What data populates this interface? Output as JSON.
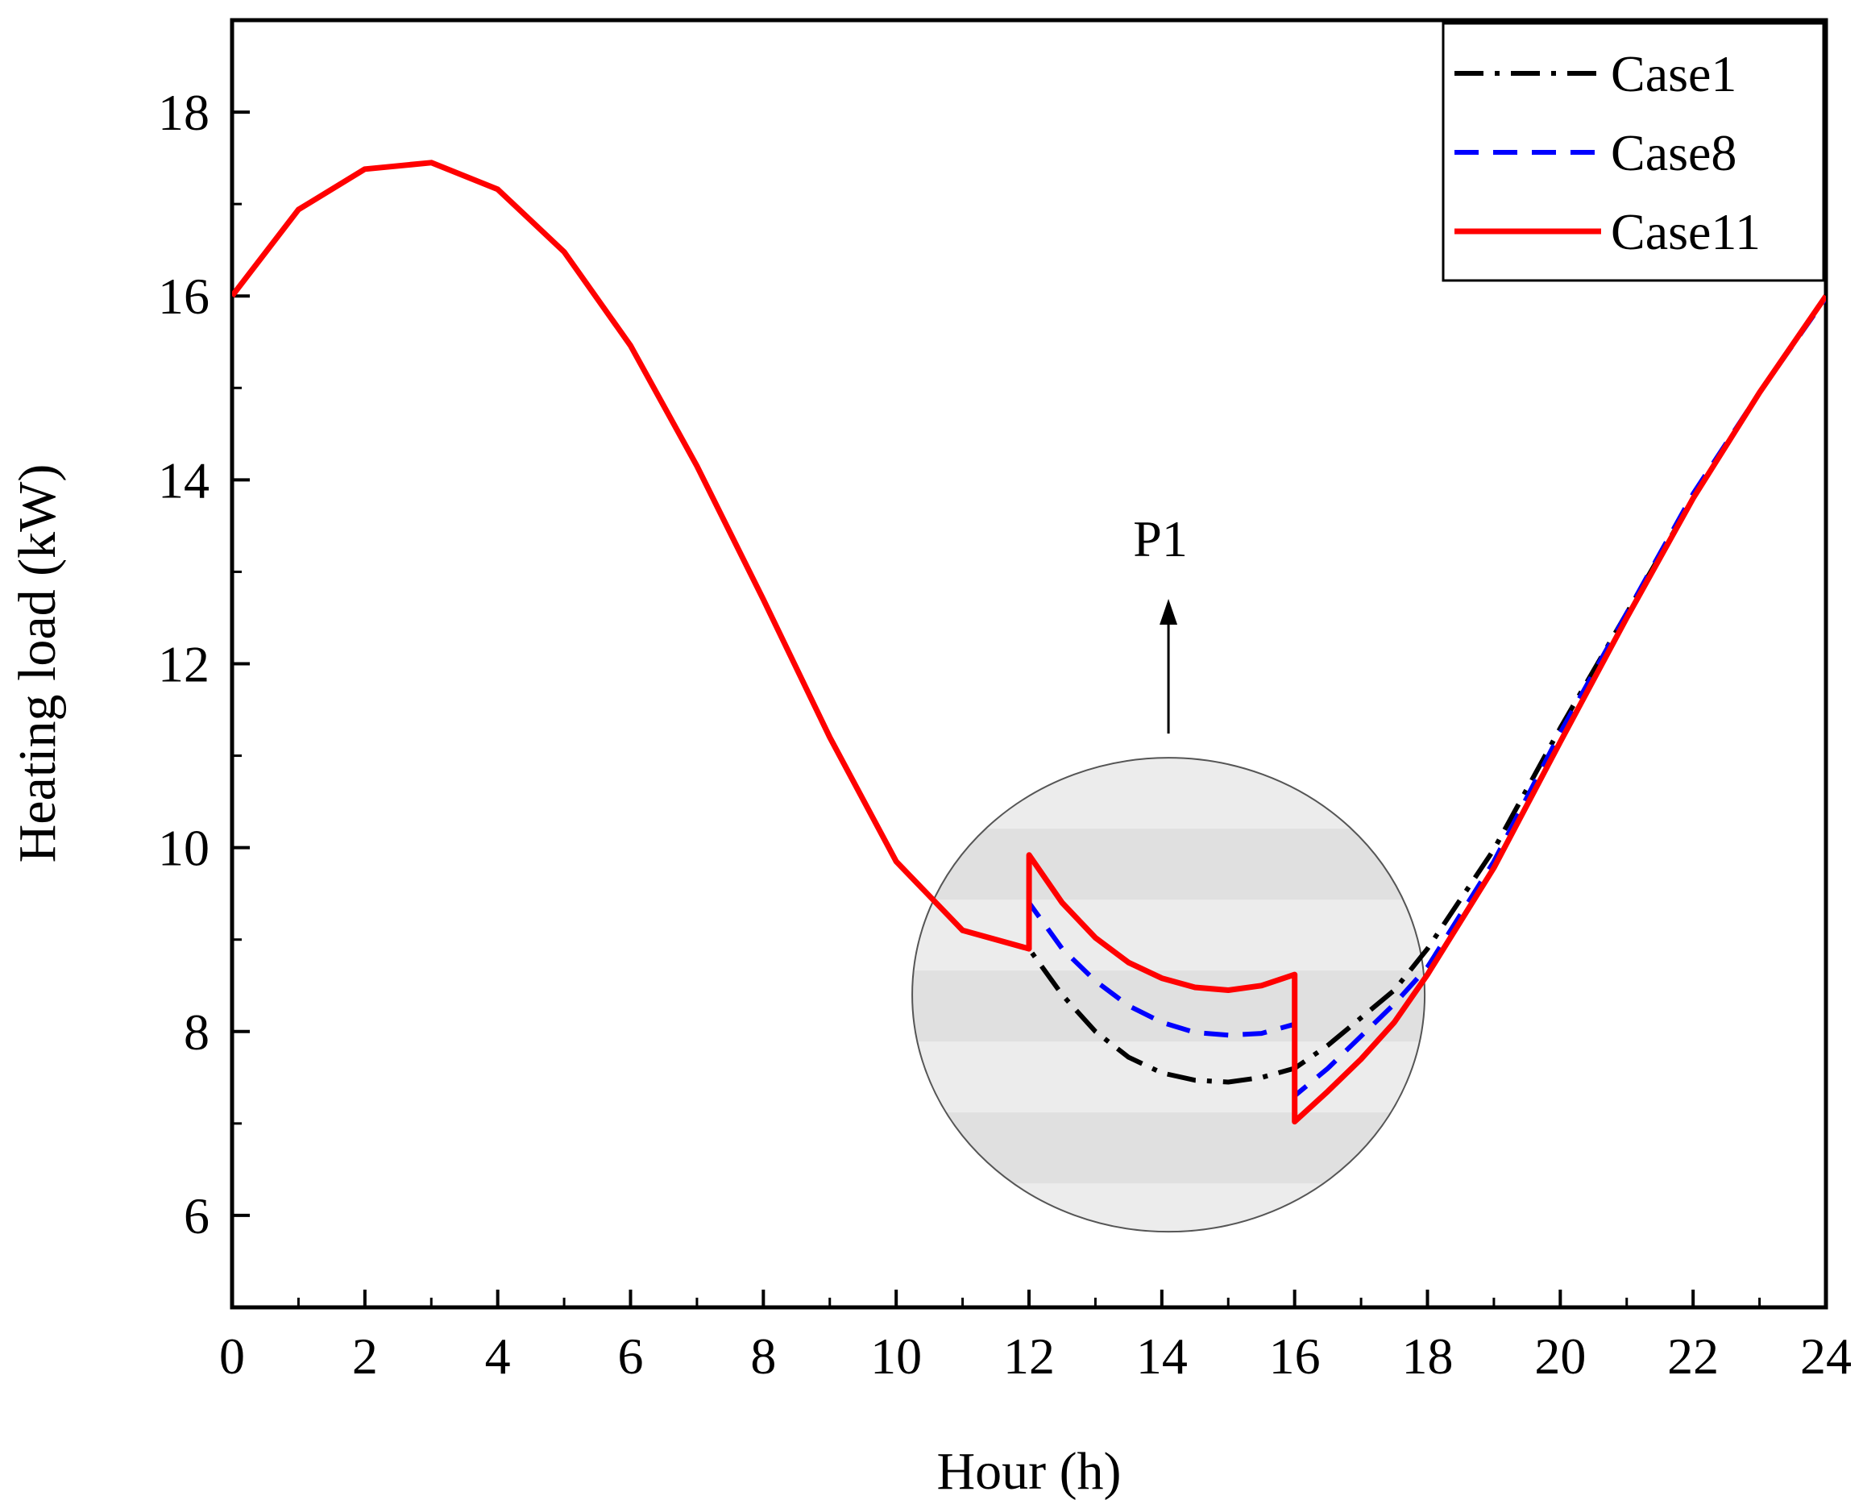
{
  "chart_data": {
    "type": "line",
    "title": "",
    "xlabel": "Hour (h)",
    "ylabel": "Heating load (kW)",
    "xlim": [
      0,
      24
    ],
    "ylim": [
      5,
      19
    ],
    "xticks": [
      0,
      2,
      4,
      6,
      8,
      10,
      12,
      14,
      16,
      18,
      20,
      22,
      24
    ],
    "yticks": [
      6,
      8,
      10,
      12,
      14,
      16,
      18
    ],
    "grid": false,
    "legend_position": "top-right",
    "series": [
      {
        "name": "Case1",
        "color": "#000000",
        "style": "dash-dot",
        "x": [
          0,
          1,
          2,
          3,
          4,
          5,
          6,
          7,
          8,
          9,
          10,
          11,
          12,
          12.5,
          13,
          13.5,
          14,
          14.5,
          15,
          15.5,
          16,
          16.5,
          17,
          17.5,
          18,
          19,
          20,
          21,
          22,
          23,
          24
        ],
        "y": [
          16.0,
          16.94,
          17.38,
          17.45,
          17.16,
          16.48,
          15.46,
          14.15,
          12.7,
          11.2,
          9.85,
          9.1,
          8.9,
          8.4,
          8.0,
          7.72,
          7.55,
          7.47,
          7.45,
          7.5,
          7.6,
          7.85,
          8.15,
          8.45,
          8.9,
          9.98,
          11.3,
          12.55,
          13.8,
          14.95,
          16.0
        ]
      },
      {
        "name": "Case8",
        "color": "#0000ff",
        "style": "dashed",
        "x": [
          0,
          1,
          2,
          3,
          4,
          5,
          6,
          7,
          8,
          9,
          10,
          11,
          12,
          12.001,
          12.5,
          13,
          13.5,
          14,
          14.5,
          15,
          15.5,
          16,
          16.001,
          16.5,
          17,
          17.5,
          18,
          19,
          20,
          21,
          22,
          23,
          24
        ],
        "y": [
          16.0,
          16.94,
          17.38,
          17.45,
          17.16,
          16.48,
          15.46,
          14.15,
          12.7,
          11.2,
          9.85,
          9.1,
          8.9,
          9.4,
          8.9,
          8.55,
          8.28,
          8.1,
          7.99,
          7.96,
          7.98,
          8.08,
          7.3,
          7.6,
          7.95,
          8.3,
          8.7,
          9.85,
          11.25,
          12.55,
          13.85,
          14.95,
          15.98
        ]
      },
      {
        "name": "Case11",
        "color": "#ff0000",
        "style": "solid",
        "x": [
          0,
          1,
          2,
          3,
          4,
          5,
          6,
          7,
          8,
          9,
          10,
          11,
          12,
          12.001,
          12.5,
          13,
          13.5,
          14,
          14.5,
          15,
          15.5,
          16,
          16.001,
          16.5,
          17,
          17.5,
          18,
          19,
          20,
          21,
          22,
          23,
          24
        ],
        "y": [
          16.0,
          16.94,
          17.38,
          17.45,
          17.16,
          16.48,
          15.46,
          14.15,
          12.7,
          11.2,
          9.85,
          9.1,
          8.9,
          9.92,
          9.4,
          9.02,
          8.75,
          8.58,
          8.48,
          8.45,
          8.5,
          8.62,
          7.02,
          7.35,
          7.7,
          8.1,
          8.62,
          9.78,
          11.15,
          12.5,
          13.8,
          14.95,
          16.0
        ]
      }
    ],
    "annotations": [
      {
        "text": "P1",
        "arrow": "up",
        "x": 14.1,
        "y": 13.1
      }
    ],
    "zoom_circle": {
      "center_x": 14.1,
      "center_y": 8.4,
      "note": "shaded highlight region"
    }
  }
}
